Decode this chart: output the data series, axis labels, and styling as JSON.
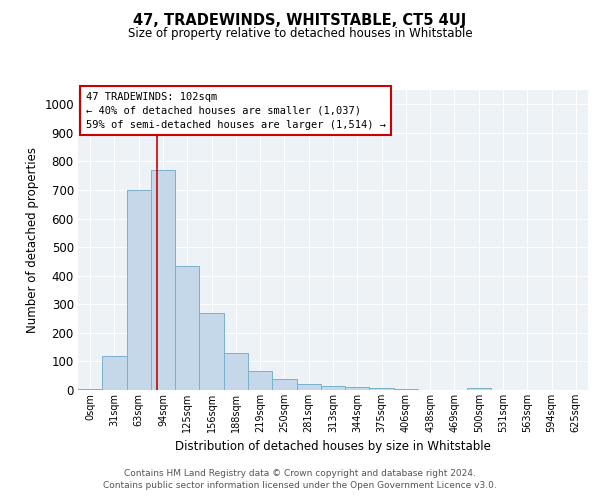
{
  "title": "47, TRADEWINDS, WHITSTABLE, CT5 4UJ",
  "subtitle": "Size of property relative to detached houses in Whitstable",
  "xlabel": "Distribution of detached houses by size in Whitstable",
  "ylabel": "Number of detached properties",
  "bar_color": "#c5d8ea",
  "bar_edge_color": "#7ab0ce",
  "background_color": "#edf2f7",
  "bin_labels": [
    "0sqm",
    "31sqm",
    "63sqm",
    "94sqm",
    "125sqm",
    "156sqm",
    "188sqm",
    "219sqm",
    "250sqm",
    "281sqm",
    "313sqm",
    "344sqm",
    "375sqm",
    "406sqm",
    "438sqm",
    "469sqm",
    "500sqm",
    "531sqm",
    "563sqm",
    "594sqm",
    "625sqm"
  ],
  "bar_heights": [
    5,
    120,
    700,
    770,
    435,
    270,
    130,
    68,
    40,
    22,
    13,
    10,
    8,
    2,
    0,
    0,
    8,
    0,
    0,
    0,
    0
  ],
  "ylim": [
    0,
    1050
  ],
  "yticks": [
    0,
    100,
    200,
    300,
    400,
    500,
    600,
    700,
    800,
    900,
    1000
  ],
  "vline_position": 3.26,
  "vline_color": "#cc0000",
  "annotation_line1": "47 TRADEWINDS: 102sqm",
  "annotation_line2": "← 40% of detached houses are smaller (1,037)",
  "annotation_line3": "59% of semi-detached houses are larger (1,514) →",
  "annotation_box_color": "#ffffff",
  "annotation_box_edge": "#cc0000",
  "footer_line1": "Contains HM Land Registry data © Crown copyright and database right 2024.",
  "footer_line2": "Contains public sector information licensed under the Open Government Licence v3.0."
}
